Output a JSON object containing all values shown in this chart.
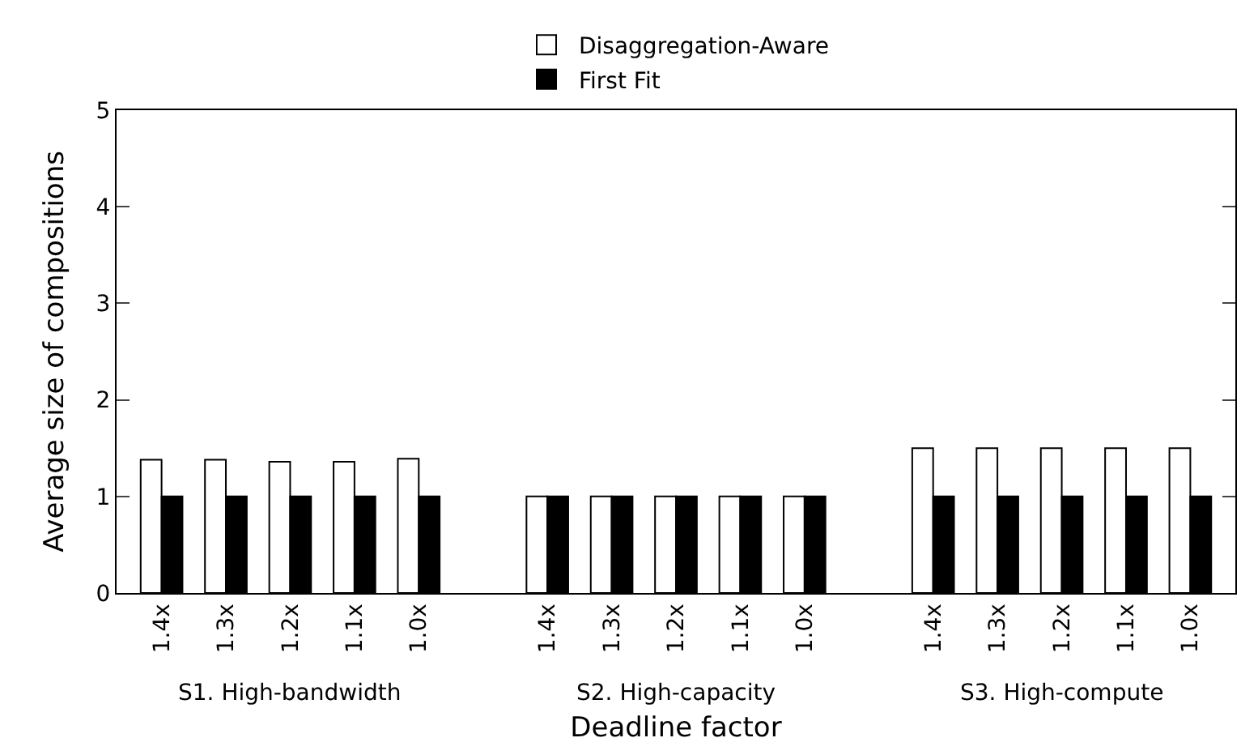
{
  "chart_data": {
    "type": "bar",
    "xlabel": "Deadline factor",
    "ylabel": "Average size of compositions",
    "categories": [
      "1.4x",
      "1.3x",
      "1.2x",
      "1.1x",
      "1.0x",
      null,
      "1.4x",
      "1.3x",
      "1.2x",
      "1.1x",
      "1.0x",
      null,
      "1.4x",
      "1.3x",
      "1.2x",
      "1.1x",
      "1.0x"
    ],
    "series": [
      {
        "name": "Disaggregation-Aware",
        "color": "#ffffff",
        "values": [
          1.38,
          1.38,
          1.36,
          1.36,
          1.39,
          null,
          1.0,
          1.0,
          1.0,
          1.0,
          1.0,
          null,
          1.5,
          1.5,
          1.5,
          1.5,
          1.5
        ]
      },
      {
        "name": "First Fit",
        "color": "#000000",
        "values": [
          1.0,
          1.0,
          1.0,
          1.0,
          1.0,
          null,
          1.0,
          1.0,
          1.0,
          1.0,
          1.0,
          null,
          1.0,
          1.0,
          1.0,
          1.0,
          1.0
        ]
      }
    ],
    "annotations": [
      "S1. High-bandwidth",
      "S2. High-capacity",
      "S3. High-compute"
    ],
    "ylim": [
      0,
      5
    ],
    "yticks": [
      0,
      1,
      2,
      3,
      4,
      5
    ],
    "legend": "top"
  }
}
